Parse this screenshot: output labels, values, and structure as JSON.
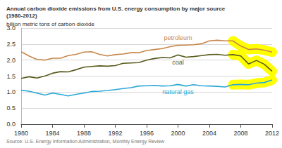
{
  "chart_data": {
    "type": "line",
    "title": "Annual carbon dioxide emissions from U.S. energy consumption by major source\n(1980-2012)",
    "subtitle": "billion metric tons of carbon dioxide",
    "source": "Source: U.S. Energy Information Administration, Monthly Energy Review",
    "x": [
      1980,
      1981,
      1982,
      1983,
      1984,
      1985,
      1986,
      1987,
      1988,
      1989,
      1990,
      1991,
      1992,
      1993,
      1994,
      1995,
      1996,
      1997,
      1998,
      1999,
      2000,
      2001,
      2002,
      2003,
      2004,
      2005,
      2006,
      2007,
      2008,
      2009,
      2010,
      2011,
      2012
    ],
    "series": [
      {
        "name": "petroleum",
        "color": "#c8864a",
        "values": [
          2.26,
          2.13,
          2.02,
          2.0,
          2.06,
          2.06,
          2.14,
          2.18,
          2.25,
          2.26,
          2.18,
          2.13,
          2.17,
          2.19,
          2.23,
          2.23,
          2.3,
          2.33,
          2.36,
          2.42,
          2.46,
          2.47,
          2.48,
          2.51,
          2.6,
          2.62,
          2.6,
          2.6,
          2.44,
          2.33,
          2.35,
          2.31,
          2.25
        ]
      },
      {
        "name": "coal",
        "color": "#5a5a1e",
        "values": [
          1.43,
          1.48,
          1.44,
          1.5,
          1.59,
          1.64,
          1.63,
          1.7,
          1.78,
          1.8,
          1.82,
          1.81,
          1.83,
          1.9,
          1.91,
          1.92,
          2.0,
          2.05,
          2.08,
          2.07,
          2.16,
          2.09,
          2.11,
          2.14,
          2.17,
          2.18,
          2.15,
          2.17,
          2.13,
          1.88,
          1.99,
          1.87,
          1.65
        ]
      },
      {
        "name": "natural gas",
        "color": "#2aa7d6",
        "values": [
          1.06,
          1.03,
          0.97,
          0.91,
          0.97,
          0.93,
          0.88,
          0.93,
          0.97,
          1.02,
          1.03,
          1.05,
          1.08,
          1.11,
          1.14,
          1.19,
          1.2,
          1.21,
          1.19,
          1.2,
          1.24,
          1.19,
          1.23,
          1.2,
          1.19,
          1.18,
          1.16,
          1.23,
          1.24,
          1.23,
          1.28,
          1.3,
          1.38
        ]
      }
    ],
    "highlight_x": [
      2007,
      2012
    ],
    "xlim": [
      1980,
      2012
    ],
    "xticks": [
      1980,
      1984,
      1988,
      1992,
      1996,
      2000,
      2004,
      2008,
      2012
    ],
    "ylim": [
      0,
      3
    ],
    "yticks": [
      {
        "value": 0,
        "label": "0.0"
      },
      0.5,
      {
        "value": 1,
        "label": "1.0"
      },
      1.5,
      {
        "value": 2,
        "label": "2.0"
      },
      2.5,
      {
        "value": 3,
        "label": "3.0"
      }
    ],
    "grid": true
  }
}
